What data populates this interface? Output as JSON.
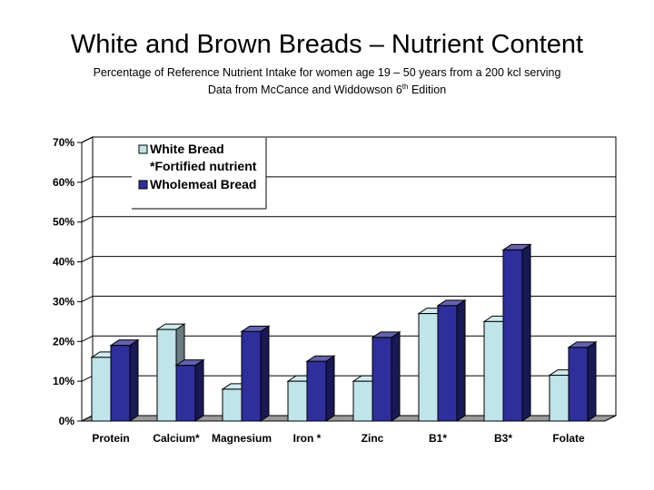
{
  "title": "White and Brown Breads – Nutrient Content",
  "subtitle_line1": "Percentage of Reference Nutrient Intake for women age 19 – 50 years from a 200 kcl serving",
  "subtitle_line2_pre": "Data from McCance and Widdowson 6",
  "subtitle_line2_sup": "th",
  "subtitle_line2_post": " Edition",
  "chart_data": {
    "type": "bar",
    "categories": [
      "Protein",
      "Calcium*",
      "Magnesium",
      "Iron *",
      "Zinc",
      "B1*",
      "B3*",
      "Folate"
    ],
    "series": [
      {
        "name": "White Bread",
        "values": [
          16,
          23,
          8,
          10,
          10,
          27,
          25,
          11.5
        ],
        "color": "#bfe4ea"
      },
      {
        "name": "Wholemeal Bread",
        "values": [
          19,
          14,
          22.5,
          15,
          21,
          29,
          43,
          18.5
        ],
        "color": "#2e2e9c"
      }
    ],
    "legend_extra": "*Fortified nutrient",
    "ylim": [
      0,
      70
    ],
    "yticks": [
      0,
      10,
      20,
      30,
      40,
      50,
      60,
      70
    ],
    "ytick_labels": [
      "0%",
      "10%",
      "20%",
      "30%",
      "40%",
      "50%",
      "60%",
      "70%"
    ],
    "legend_position": "top-left",
    "grid": true,
    "style": "3d"
  }
}
